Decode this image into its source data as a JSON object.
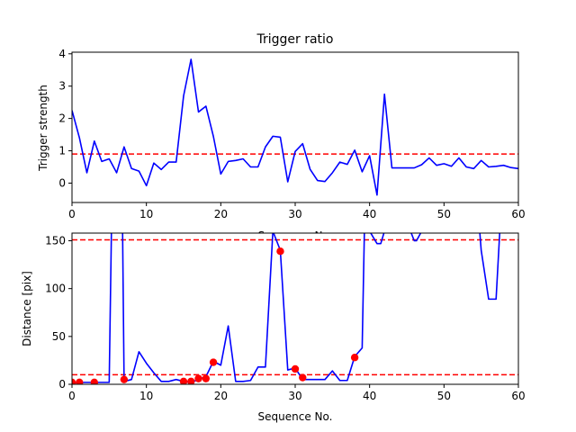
{
  "chart_data": [
    {
      "type": "line",
      "title": "Trigger ratio",
      "xlabel": "Sequence No.",
      "ylabel": "Trigger strength",
      "xlim": [
        0,
        60
      ],
      "ylim": [
        -0.6,
        4.05
      ],
      "xticks": [
        "0",
        "10",
        "20",
        "30",
        "40",
        "50",
        "60"
      ],
      "yticks": [
        "0",
        "1",
        "2",
        "3",
        "4"
      ],
      "grid": false,
      "line_color": "#0000ff",
      "threshold_color": "#ff0000",
      "thresholds": [
        0.9
      ],
      "series": [
        {
          "x": [
            0,
            1,
            2,
            3,
            4,
            5,
            6,
            7,
            8,
            9,
            10,
            11,
            12,
            13,
            14,
            15,
            16,
            17,
            18,
            19,
            20,
            21,
            22,
            23,
            24,
            25,
            26,
            27,
            28,
            29,
            30,
            31,
            32,
            33,
            34,
            35,
            36,
            37,
            38,
            39,
            40,
            41,
            42,
            43,
            44,
            45,
            46,
            47,
            48,
            49,
            50,
            51,
            52,
            53,
            54,
            55,
            56,
            57,
            58,
            59,
            60
          ],
          "y": [
            2.25,
            1.4,
            0.32,
            1.3,
            0.67,
            0.75,
            0.32,
            1.12,
            0.45,
            0.37,
            -0.08,
            0.62,
            0.42,
            0.65,
            0.65,
            2.7,
            3.83,
            2.2,
            2.38,
            1.45,
            0.28,
            0.67,
            0.7,
            0.75,
            0.5,
            0.5,
            1.12,
            1.45,
            1.42,
            0.04,
            0.98,
            1.22,
            0.43,
            0.08,
            0.05,
            0.32,
            0.65,
            0.58,
            1.02,
            0.35,
            0.85,
            -0.37,
            2.75,
            0.47,
            0.47,
            0.47,
            0.47,
            0.57,
            0.78,
            0.55,
            0.6,
            0.52,
            0.78,
            0.5,
            0.45,
            0.7,
            0.5,
            0.52,
            0.55,
            0.48,
            0.45
          ]
        }
      ]
    },
    {
      "type": "line",
      "title": "",
      "xlabel": "Sequence No.",
      "ylabel": "Distance [pix]",
      "xlim": [
        0,
        60
      ],
      "ylim": [
        0,
        158
      ],
      "xticks": [
        "0",
        "10",
        "20",
        "30",
        "40",
        "50",
        "60"
      ],
      "yticks": [
        "0",
        "50",
        "100",
        "150"
      ],
      "grid": false,
      "line_color": "#0000ff",
      "marker_color": "#ff0000",
      "threshold_color": "#ff0000",
      "thresholds": [
        10,
        151
      ],
      "series": [
        {
          "x": [
            0,
            1,
            2,
            3,
            4,
            5,
            5.3,
            5.5,
            6.5,
            6.8,
            7,
            8,
            9,
            10,
            11,
            12,
            13,
            14,
            15,
            16,
            17,
            18,
            19,
            20,
            21,
            22,
            23,
            24,
            25,
            26,
            27,
            27.5,
            28,
            29,
            30,
            31,
            32,
            33,
            34,
            35,
            36,
            37,
            38,
            39,
            39.3,
            40,
            41,
            41.5,
            42,
            42.2,
            43,
            44,
            45,
            45.5,
            46,
            46.3,
            47,
            48,
            49,
            50,
            51,
            52,
            53,
            54,
            54.8,
            55,
            56,
            57,
            57.5,
            58,
            59,
            60
          ],
          "y": [
            2,
            2,
            2,
            2,
            2,
            2,
            160,
            160,
            160,
            160,
            3,
            5,
            34,
            22,
            12,
            3,
            3,
            5,
            3,
            2,
            5,
            8,
            24,
            20,
            61,
            3,
            3,
            4,
            18,
            18,
            160,
            150,
            140,
            15,
            17,
            5,
            5,
            5,
            5,
            14,
            4,
            4,
            29,
            38,
            160,
            160,
            147,
            147,
            160,
            160,
            160,
            160,
            160,
            160,
            150,
            150,
            160,
            160,
            160,
            160,
            160,
            160,
            160,
            160,
            160,
            140,
            89,
            89,
            160,
            160,
            160,
            160
          ]
        },
        {
          "name": "",
          "x": [
            0,
            1,
            3,
            7,
            15,
            16,
            17,
            18,
            19,
            28,
            30,
            31,
            38
          ],
          "y": [
            2,
            2,
            2,
            5,
            3,
            3,
            6,
            6,
            23,
            139,
            16,
            7,
            28
          ]
        }
      ]
    }
  ]
}
